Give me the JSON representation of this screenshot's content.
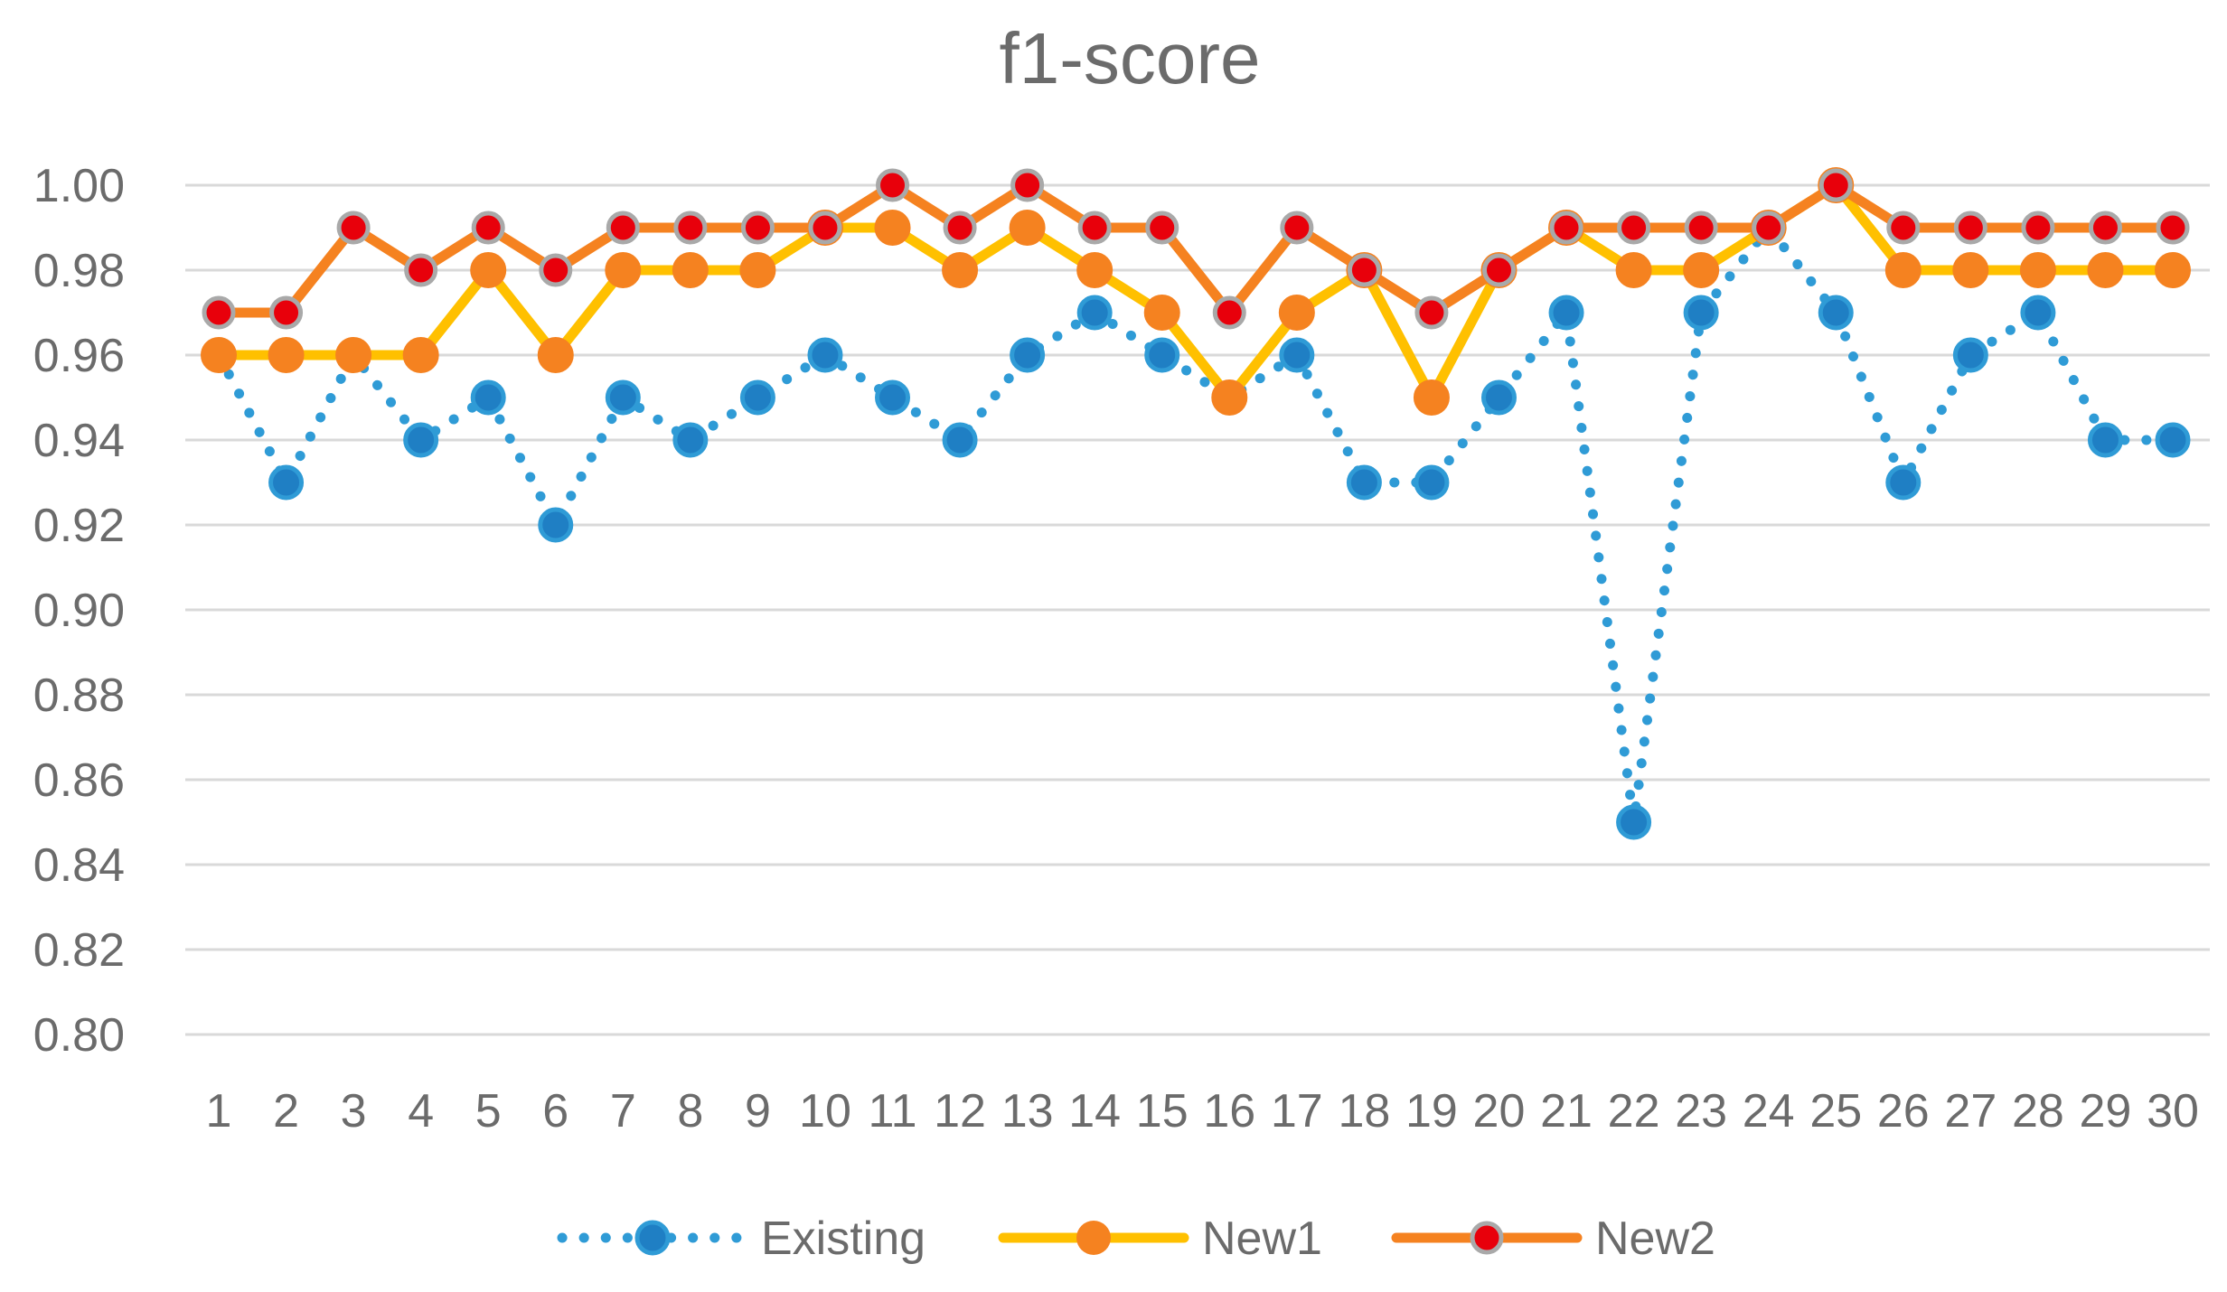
{
  "chart_data": {
    "type": "line",
    "title": "f1-score",
    "xlabel": "",
    "ylabel": "",
    "categories": [
      "1",
      "2",
      "3",
      "4",
      "5",
      "6",
      "7",
      "8",
      "9",
      "10",
      "11",
      "12",
      "13",
      "14",
      "15",
      "16",
      "17",
      "18",
      "19",
      "20",
      "21",
      "22",
      "23",
      "24",
      "25",
      "26",
      "27",
      "28",
      "29",
      "30"
    ],
    "ylim": [
      0.8,
      1.0
    ],
    "yticks": [
      "0.80",
      "0.82",
      "0.84",
      "0.86",
      "0.88",
      "0.90",
      "0.92",
      "0.94",
      "0.96",
      "0.98",
      "1.00"
    ],
    "grid": true,
    "legend_position": "bottom",
    "series": [
      {
        "name": "Existing",
        "color": "#2f9bd6",
        "marker_fill": "#1f7fc4",
        "line_style": "dotted",
        "values": [
          0.96,
          0.93,
          0.96,
          0.94,
          0.95,
          0.92,
          0.95,
          0.94,
          0.95,
          0.96,
          0.95,
          0.94,
          0.96,
          0.97,
          0.96,
          0.95,
          0.96,
          0.93,
          0.93,
          0.95,
          0.97,
          0.85,
          0.97,
          0.99,
          0.97,
          0.93,
          0.96,
          0.97,
          0.94,
          0.94
        ]
      },
      {
        "name": "New1",
        "color": "#ffc000",
        "marker_fill": "#f58220",
        "line_style": "solid",
        "values": [
          0.96,
          0.96,
          0.96,
          0.96,
          0.98,
          0.96,
          0.98,
          0.98,
          0.98,
          0.99,
          0.99,
          0.98,
          0.99,
          0.98,
          0.97,
          0.95,
          0.97,
          0.98,
          0.95,
          0.98,
          0.99,
          0.98,
          0.98,
          0.99,
          1.0,
          0.98,
          0.98,
          0.98,
          0.98,
          0.98
        ]
      },
      {
        "name": "New2",
        "color": "#f58220",
        "marker_fill": "#e8000b",
        "line_style": "solid",
        "values": [
          0.97,
          0.97,
          0.99,
          0.98,
          0.99,
          0.98,
          0.99,
          0.99,
          0.99,
          0.99,
          1.0,
          0.99,
          1.0,
          0.99,
          0.99,
          0.97,
          0.99,
          0.98,
          0.97,
          0.98,
          0.99,
          0.99,
          0.99,
          0.99,
          1.0,
          0.99,
          0.99,
          0.99,
          0.99,
          0.99
        ]
      }
    ]
  }
}
